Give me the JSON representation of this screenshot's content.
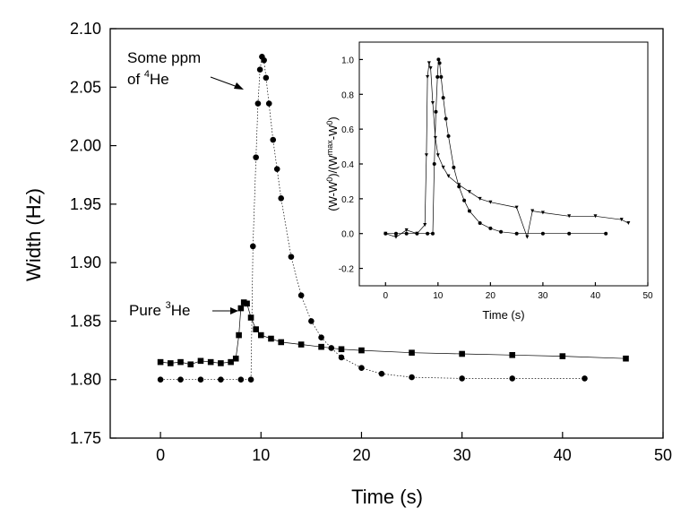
{
  "chart_data": [
    {
      "type": "scatter",
      "title": "",
      "xlabel": "Time (s)",
      "ylabel": "Width (Hz)",
      "xlim": [
        -5,
        50
      ],
      "ylim": [
        1.75,
        2.1
      ],
      "xticks": [
        0,
        10,
        20,
        30,
        40,
        50
      ],
      "xtick_labels": [
        "0",
        "10",
        "20",
        "30",
        "40",
        "50"
      ],
      "yticks": [
        1.75,
        1.8,
        1.85,
        1.9,
        1.95,
        2.0,
        2.05,
        2.1
      ],
      "ytick_labels": [
        "1.75",
        "1.80",
        "1.85",
        "1.90",
        "1.95",
        "2.00",
        "2.05",
        "2.10"
      ],
      "grid": false,
      "legend": "none",
      "series": [
        {
          "marker": "square",
          "line": "solid",
          "x": [
            0,
            1,
            2,
            3,
            4,
            5,
            6,
            7,
            7.5,
            7.8,
            8.0,
            8.3,
            8.6,
            9.0,
            9.5,
            10,
            11,
            12,
            14,
            16,
            18,
            20,
            25,
            30,
            35,
            40,
            46.3
          ],
          "y": [
            1.815,
            1.814,
            1.815,
            1.813,
            1.816,
            1.815,
            1.814,
            1.815,
            1.818,
            1.838,
            1.861,
            1.866,
            1.865,
            1.853,
            1.843,
            1.838,
            1.835,
            1.832,
            1.83,
            1.828,
            1.826,
            1.825,
            1.823,
            1.822,
            1.821,
            1.82,
            1.818
          ]
        },
        {
          "marker": "circle",
          "line": "dotted",
          "x": [
            0,
            2,
            4,
            6,
            8,
            9.0,
            9.2,
            9.5,
            9.7,
            9.9,
            10.1,
            10.3,
            10.5,
            10.8,
            11.2,
            11.6,
            12,
            13,
            14,
            15,
            16,
            17,
            18,
            20,
            22,
            25,
            30,
            35,
            42.2
          ],
          "y": [
            1.8,
            1.8,
            1.8,
            1.8,
            1.8,
            1.8,
            1.914,
            1.99,
            2.036,
            2.065,
            2.076,
            2.073,
            2.058,
            2.036,
            2.005,
            1.98,
            1.955,
            1.905,
            1.872,
            1.85,
            1.836,
            1.827,
            1.819,
            1.81,
            1.805,
            1.802,
            1.801,
            1.801,
            1.801
          ]
        }
      ],
      "annotations": [
        {
          "text_lines": [
            "Some ppm",
            "of ",
            "4",
            "He"
          ]
        },
        {
          "text_parts": [
            "Pure ",
            "3",
            "He"
          ]
        }
      ]
    },
    {
      "type": "scatter",
      "title": "",
      "xlabel": "Time (s)",
      "ylabel_parts": [
        "(W-W",
        "0",
        ")/(W",
        "max",
        "-W",
        "0",
        ")"
      ],
      "xlim": [
        -5,
        50
      ],
      "ylim": [
        -0.3,
        1.1
      ],
      "xticks": [
        0,
        10,
        20,
        30,
        40,
        50
      ],
      "xtick_labels": [
        "0",
        "10",
        "20",
        "30",
        "40",
        "50"
      ],
      "yticks": [
        -0.2,
        0.0,
        0.2,
        0.4,
        0.6,
        0.8,
        1.0
      ],
      "ytick_labels": [
        "-0.2",
        "0.0",
        "0.2",
        "0.4",
        "0.6",
        "0.8",
        "1.0"
      ],
      "grid": false,
      "legend": "none",
      "series": [
        {
          "marker": "triangle-down",
          "line": "solid",
          "x": [
            0,
            2,
            4,
            6,
            7.5,
            7.8,
            8.0,
            8.3,
            8.6,
            9.0,
            9.5,
            10,
            11,
            12,
            14,
            16,
            18,
            20,
            25,
            27,
            28,
            30,
            35,
            40,
            45,
            46.3
          ],
          "y": [
            0.0,
            -0.02,
            0.02,
            0.0,
            0.05,
            0.45,
            0.9,
            0.98,
            0.95,
            0.75,
            0.55,
            0.45,
            0.38,
            0.33,
            0.28,
            0.24,
            0.2,
            0.18,
            0.15,
            -0.02,
            0.13,
            0.12,
            0.1,
            0.1,
            0.08,
            0.06
          ]
        },
        {
          "marker": "circle",
          "line": "solid",
          "x": [
            0,
            2,
            4,
            6,
            8,
            9.0,
            9.3,
            9.6,
            9.9,
            10.1,
            10.3,
            10.6,
            11,
            11.5,
            12,
            13,
            14,
            15,
            16,
            18,
            20,
            22,
            25,
            30,
            35,
            42
          ],
          "y": [
            0.0,
            0.0,
            0.0,
            0.0,
            0.0,
            0.0,
            0.4,
            0.7,
            0.9,
            1.0,
            0.98,
            0.9,
            0.78,
            0.66,
            0.56,
            0.38,
            0.27,
            0.19,
            0.13,
            0.06,
            0.03,
            0.01,
            0.0,
            0.0,
            0.0,
            0.0
          ]
        }
      ]
    }
  ]
}
